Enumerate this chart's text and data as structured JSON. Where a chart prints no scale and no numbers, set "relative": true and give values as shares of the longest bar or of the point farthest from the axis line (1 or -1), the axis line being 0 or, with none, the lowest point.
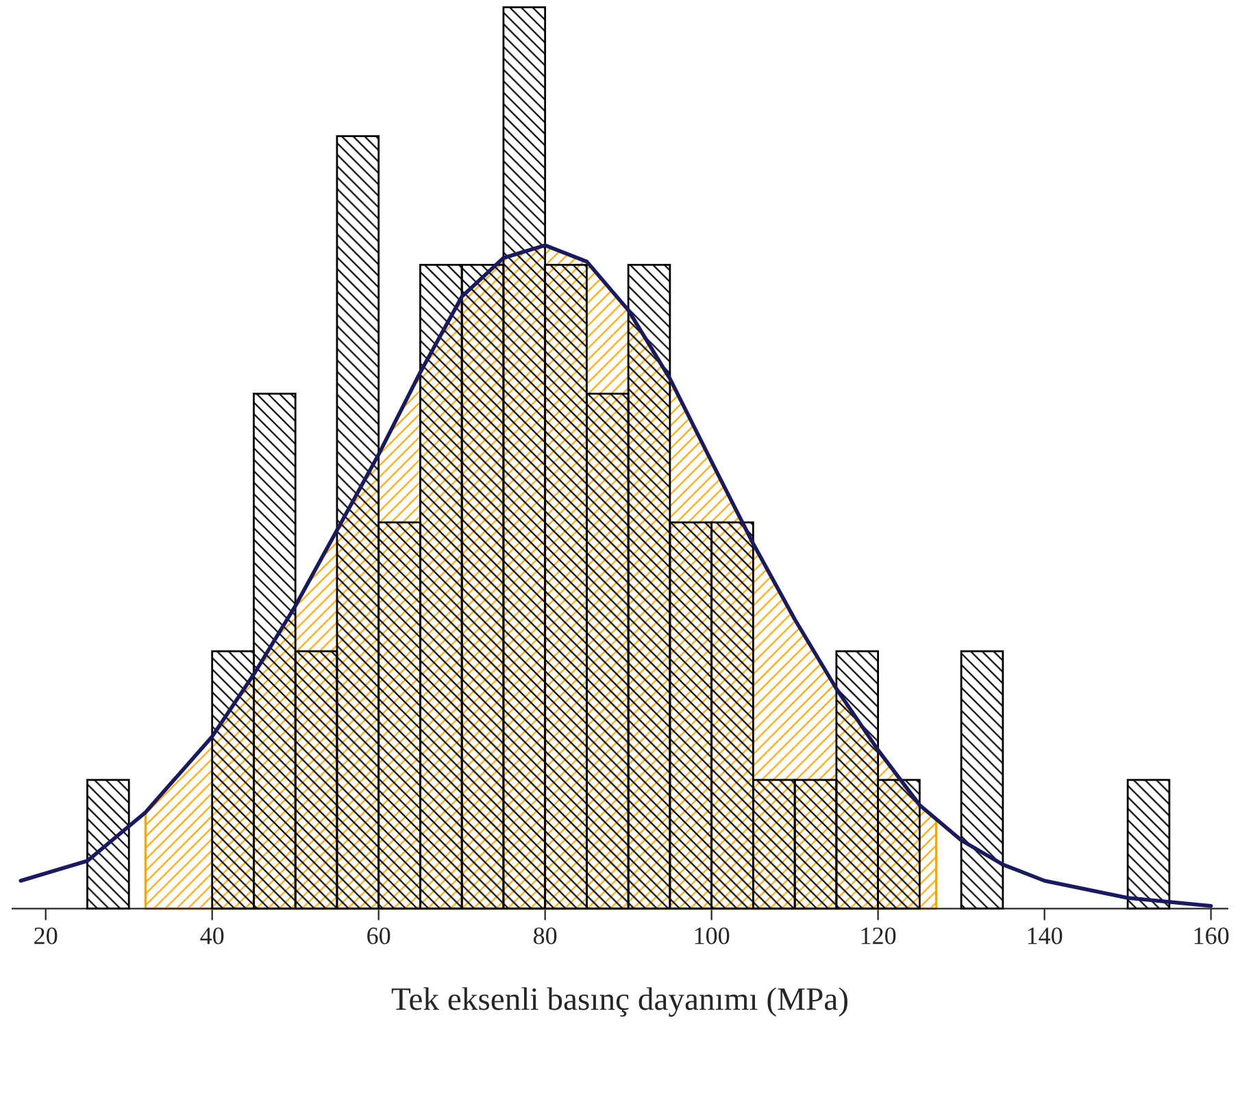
{
  "chart_data": {
    "type": "histogram",
    "relative": true,
    "xlabel": "Tek eksenli basınç dayanımı (MPa)",
    "bins": [
      25,
      30,
      35,
      40,
      45,
      50,
      55,
      60,
      65,
      70,
      75,
      80,
      85,
      90,
      95,
      100,
      105,
      110,
      115,
      120,
      125,
      130,
      135,
      140,
      145,
      150,
      155
    ],
    "values": [
      0.1429,
      0,
      0,
      0.2857,
      0.5714,
      0.2857,
      0.8571,
      0.4286,
      0.7143,
      0.7143,
      1,
      0.7143,
      0.5714,
      0.7143,
      0.4286,
      0.4286,
      0.1429,
      0.1429,
      0.2857,
      0.1429,
      0,
      0.2857,
      0,
      0,
      0,
      0.1429
    ],
    "color": "#000000",
    "series": [
      {
        "type": "area",
        "color": "#ffa500",
        "x": [
          32,
          40,
          45,
          50,
          55,
          60,
          65,
          70,
          75,
          80,
          85,
          90,
          95,
          100,
          105,
          110,
          115,
          120,
          125,
          127
        ],
        "values": [
          0.107,
          0.191,
          0.26,
          0.336,
          0.42,
          0.504,
          0.595,
          0.679,
          0.722,
          0.736,
          0.718,
          0.664,
          0.588,
          0.496,
          0.405,
          0.321,
          0.244,
          0.176,
          0.115,
          0.099
        ]
      },
      {
        "type": "line",
        "color": "#1a1a5e",
        "x": [
          17,
          25,
          32,
          40,
          45,
          50,
          55,
          60,
          65,
          70,
          75,
          80,
          85,
          90,
          95,
          100,
          105,
          110,
          115,
          120,
          125,
          130,
          135,
          140,
          150,
          160
        ],
        "values": [
          0.031,
          0.053,
          0.107,
          0.191,
          0.26,
          0.336,
          0.42,
          0.504,
          0.595,
          0.679,
          0.722,
          0.736,
          0.718,
          0.664,
          0.588,
          0.496,
          0.405,
          0.321,
          0.244,
          0.176,
          0.115,
          0.076,
          0.049,
          0.031,
          0.012,
          0.003
        ]
      }
    ],
    "xlim": [
      16,
      162
    ],
    "xticks": [
      20,
      40,
      60,
      80,
      100,
      120,
      140,
      160
    ],
    "grid": false,
    "legend": false
  }
}
